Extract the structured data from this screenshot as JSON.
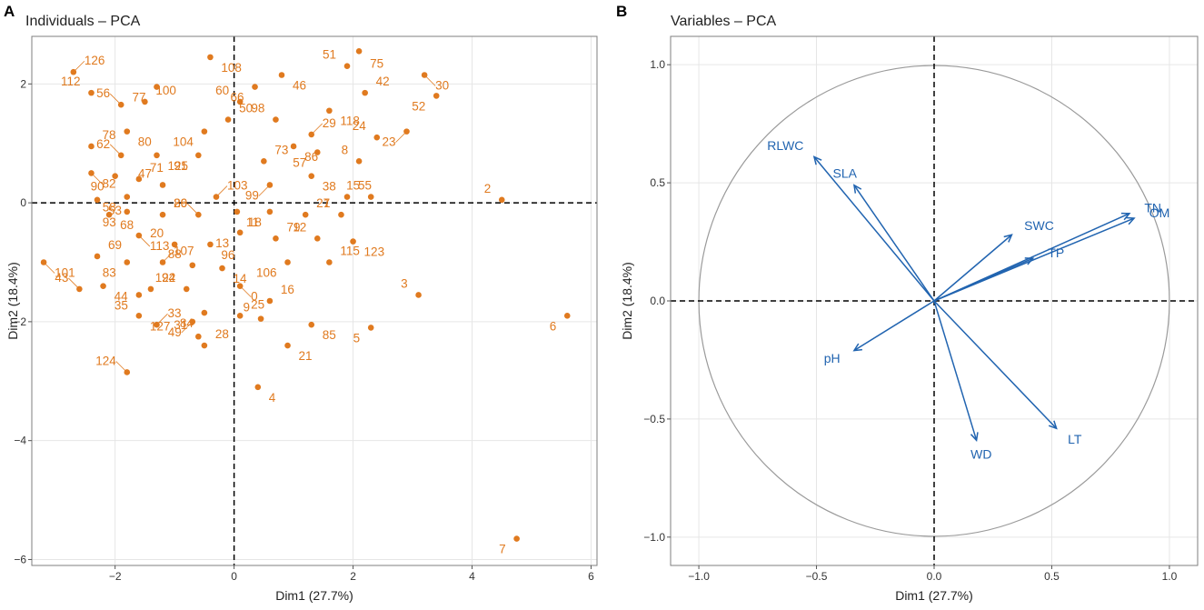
{
  "chart_data": [
    {
      "panel": "A",
      "type": "scatter",
      "title": "Individuals – PCA",
      "xlabel": "Dim1 (27.7%)",
      "ylabel": "Dim2 (18.4%)",
      "xlim": [
        -3.4,
        6.1
      ],
      "ylim": [
        -6.1,
        2.8
      ],
      "xticks": [
        -2,
        0,
        2,
        4,
        6
      ],
      "yticks": [
        -6,
        -4,
        -2,
        0,
        2
      ],
      "grid": true,
      "point_color": "#e07a1f",
      "points": [
        {
          "id": "126",
          "x": -2.7,
          "y": 2.2
        },
        {
          "id": "112",
          "x": -2.4,
          "y": 1.85
        },
        {
          "id": "108",
          "x": -0.4,
          "y": 2.45
        },
        {
          "id": "77",
          "x": -1.3,
          "y": 1.95
        },
        {
          "id": "100",
          "x": -1.5,
          "y": 1.7
        },
        {
          "id": "56",
          "x": -1.9,
          "y": 1.65
        },
        {
          "id": "46",
          "x": 0.8,
          "y": 2.15
        },
        {
          "id": "66",
          "x": 0.35,
          "y": 1.95
        },
        {
          "id": "75",
          "x": 2.1,
          "y": 2.55
        },
        {
          "id": "51",
          "x": 1.9,
          "y": 2.3
        },
        {
          "id": "30",
          "x": 3.2,
          "y": 2.15
        },
        {
          "id": "52",
          "x": 3.4,
          "y": 1.8
        },
        {
          "id": "42",
          "x": 2.2,
          "y": 1.85
        },
        {
          "id": "60",
          "x": 0.1,
          "y": 1.7
        },
        {
          "id": "118",
          "x": 1.6,
          "y": 1.55
        },
        {
          "id": "23",
          "x": 2.9,
          "y": 1.2
        },
        {
          "id": "50",
          "x": -0.1,
          "y": 1.4
        },
        {
          "id": "98",
          "x": 0.7,
          "y": 1.4
        },
        {
          "id": "80",
          "x": -1.8,
          "y": 1.2
        },
        {
          "id": "104",
          "x": -0.5,
          "y": 1.2
        },
        {
          "id": "29",
          "x": 1.3,
          "y": 1.15
        },
        {
          "id": "24",
          "x": 2.4,
          "y": 1.1
        },
        {
          "id": "86",
          "x": 1.0,
          "y": 0.95
        },
        {
          "id": "57",
          "x": 1.4,
          "y": 0.85
        },
        {
          "id": "78",
          "x": -2.4,
          "y": 0.95
        },
        {
          "id": "62",
          "x": -1.9,
          "y": 0.8
        },
        {
          "id": "125",
          "x": -1.3,
          "y": 0.8
        },
        {
          "id": "91",
          "x": -0.6,
          "y": 0.8
        },
        {
          "id": "73",
          "x": 0.5,
          "y": 0.7
        },
        {
          "id": "8",
          "x": 2.1,
          "y": 0.7
        },
        {
          "id": "82",
          "x": -2.4,
          "y": 0.5
        },
        {
          "id": "90",
          "x": -2.0,
          "y": 0.45
        },
        {
          "id": "71",
          "x": -1.6,
          "y": 0.4
        },
        {
          "id": "47",
          "x": -1.2,
          "y": 0.3
        },
        {
          "id": "38",
          "x": 1.3,
          "y": 0.45
        },
        {
          "id": "99",
          "x": 0.6,
          "y": 0.3
        },
        {
          "id": "55",
          "x": 1.9,
          "y": 0.1
        },
        {
          "id": "2",
          "x": 4.5,
          "y": 0.05
        },
        {
          "id": "53",
          "x": -2.3,
          "y": 0.05
        },
        {
          "id": "58",
          "x": -1.8,
          "y": 0.1
        },
        {
          "id": "103",
          "x": -0.3,
          "y": 0.1
        },
        {
          "id": "15",
          "x": 2.3,
          "y": 0.1
        },
        {
          "id": "68",
          "x": -2.1,
          "y": -0.2
        },
        {
          "id": "93",
          "x": -1.8,
          "y": -0.15
        },
        {
          "id": "26",
          "x": -1.2,
          "y": -0.2
        },
        {
          "id": "89",
          "x": -0.6,
          "y": -0.2
        },
        {
          "id": "18",
          "x": 0.05,
          "y": -0.15
        },
        {
          "id": "11",
          "x": 0.6,
          "y": -0.15
        },
        {
          "id": "27",
          "x": 1.2,
          "y": -0.2
        },
        {
          "id": "1",
          "x": 1.8,
          "y": -0.2
        },
        {
          "id": "113",
          "x": -1.6,
          "y": -0.55
        },
        {
          "id": "13",
          "x": 0.1,
          "y": -0.5
        },
        {
          "id": "79",
          "x": 0.7,
          "y": -0.6
        },
        {
          "id": "12",
          "x": 1.4,
          "y": -0.6
        },
        {
          "id": "123",
          "x": 2.0,
          "y": -0.65
        },
        {
          "id": "101",
          "x": -3.2,
          "y": -1.0
        },
        {
          "id": "69",
          "x": -2.3,
          "y": -0.9
        },
        {
          "id": "20",
          "x": -1.0,
          "y": -0.7
        },
        {
          "id": "96",
          "x": -0.4,
          "y": -0.7
        },
        {
          "id": "83",
          "x": -1.8,
          "y": -1.0
        },
        {
          "id": "107",
          "x": -1.2,
          "y": -1.0
        },
        {
          "id": "88",
          "x": -0.7,
          "y": -1.05
        },
        {
          "id": "14",
          "x": -0.2,
          "y": -1.1
        },
        {
          "id": "106",
          "x": 0.9,
          "y": -1.0
        },
        {
          "id": "115",
          "x": 1.6,
          "y": -1.0
        },
        {
          "id": "43",
          "x": -2.6,
          "y": -1.45
        },
        {
          "id": "44",
          "x": -2.2,
          "y": -1.4
        },
        {
          "id": "35",
          "x": -1.6,
          "y": -1.55
        },
        {
          "id": "94",
          "x": -1.4,
          "y": -1.45
        },
        {
          "id": "122",
          "x": -0.8,
          "y": -1.45
        },
        {
          "id": "0",
          "x": 0.1,
          "y": -1.4
        },
        {
          "id": "84",
          "x": -0.5,
          "y": -1.85
        },
        {
          "id": "16",
          "x": 0.6,
          "y": -1.65
        },
        {
          "id": "3",
          "x": 3.1,
          "y": -1.55
        },
        {
          "id": "127",
          "x": -1.6,
          "y": -1.9
        },
        {
          "id": "49",
          "x": -0.7,
          "y": -2.0
        },
        {
          "id": "25",
          "x": 0.1,
          "y": -1.9
        },
        {
          "id": "9",
          "x": 0.45,
          "y": -1.95
        },
        {
          "id": "85",
          "x": 1.3,
          "y": -2.05
        },
        {
          "id": "5",
          "x": 2.3,
          "y": -2.1
        },
        {
          "id": "33",
          "x": -1.3,
          "y": -2.05
        },
        {
          "id": "31",
          "x": -0.6,
          "y": -2.25
        },
        {
          "id": "21",
          "x": 0.9,
          "y": -2.4
        },
        {
          "id": "6",
          "x": 5.6,
          "y": -1.9
        },
        {
          "id": "28",
          "x": -0.5,
          "y": -2.4
        },
        {
          "id": "124",
          "x": -1.8,
          "y": -2.85
        },
        {
          "id": "4",
          "x": 0.4,
          "y": -3.1
        },
        {
          "id": "7",
          "x": 4.75,
          "y": -5.65
        }
      ]
    },
    {
      "panel": "B",
      "type": "scatter",
      "subtype": "pca-variable-loadings",
      "title": "Variables – PCA",
      "xlabel": "Dim1 (27.7%)",
      "ylabel": "Dim2 (18.4%)",
      "xlim": [
        -1.12,
        1.12
      ],
      "ylim": [
        -1.12,
        1.12
      ],
      "xticks": [
        -1.0,
        -0.5,
        0.0,
        0.5,
        1.0
      ],
      "yticks": [
        -1.0,
        -0.5,
        0.0,
        0.5,
        1.0
      ],
      "xtick_labels": [
        "−1.0",
        "−0.5",
        "0.0",
        "0.5",
        "1.0"
      ],
      "ytick_labels": [
        "−1.0",
        "−0.5",
        "0.0",
        "0.5",
        "1.0"
      ],
      "grid": true,
      "unit_circle": true,
      "arrow_color": "#2164b0",
      "variables": [
        {
          "name": "RLWC",
          "x": -0.51,
          "y": 0.61
        },
        {
          "name": "SLA",
          "x": -0.34,
          "y": 0.49
        },
        {
          "name": "TN",
          "x": 0.83,
          "y": 0.37
        },
        {
          "name": "OM",
          "x": 0.85,
          "y": 0.35
        },
        {
          "name": "SWC",
          "x": 0.33,
          "y": 0.28
        },
        {
          "name": "TP",
          "x": 0.42,
          "y": 0.18
        },
        {
          "name": "pH",
          "x": -0.34,
          "y": -0.21
        },
        {
          "name": "WD",
          "x": 0.18,
          "y": -0.59
        },
        {
          "name": "LT",
          "x": 0.52,
          "y": -0.54
        }
      ]
    }
  ]
}
